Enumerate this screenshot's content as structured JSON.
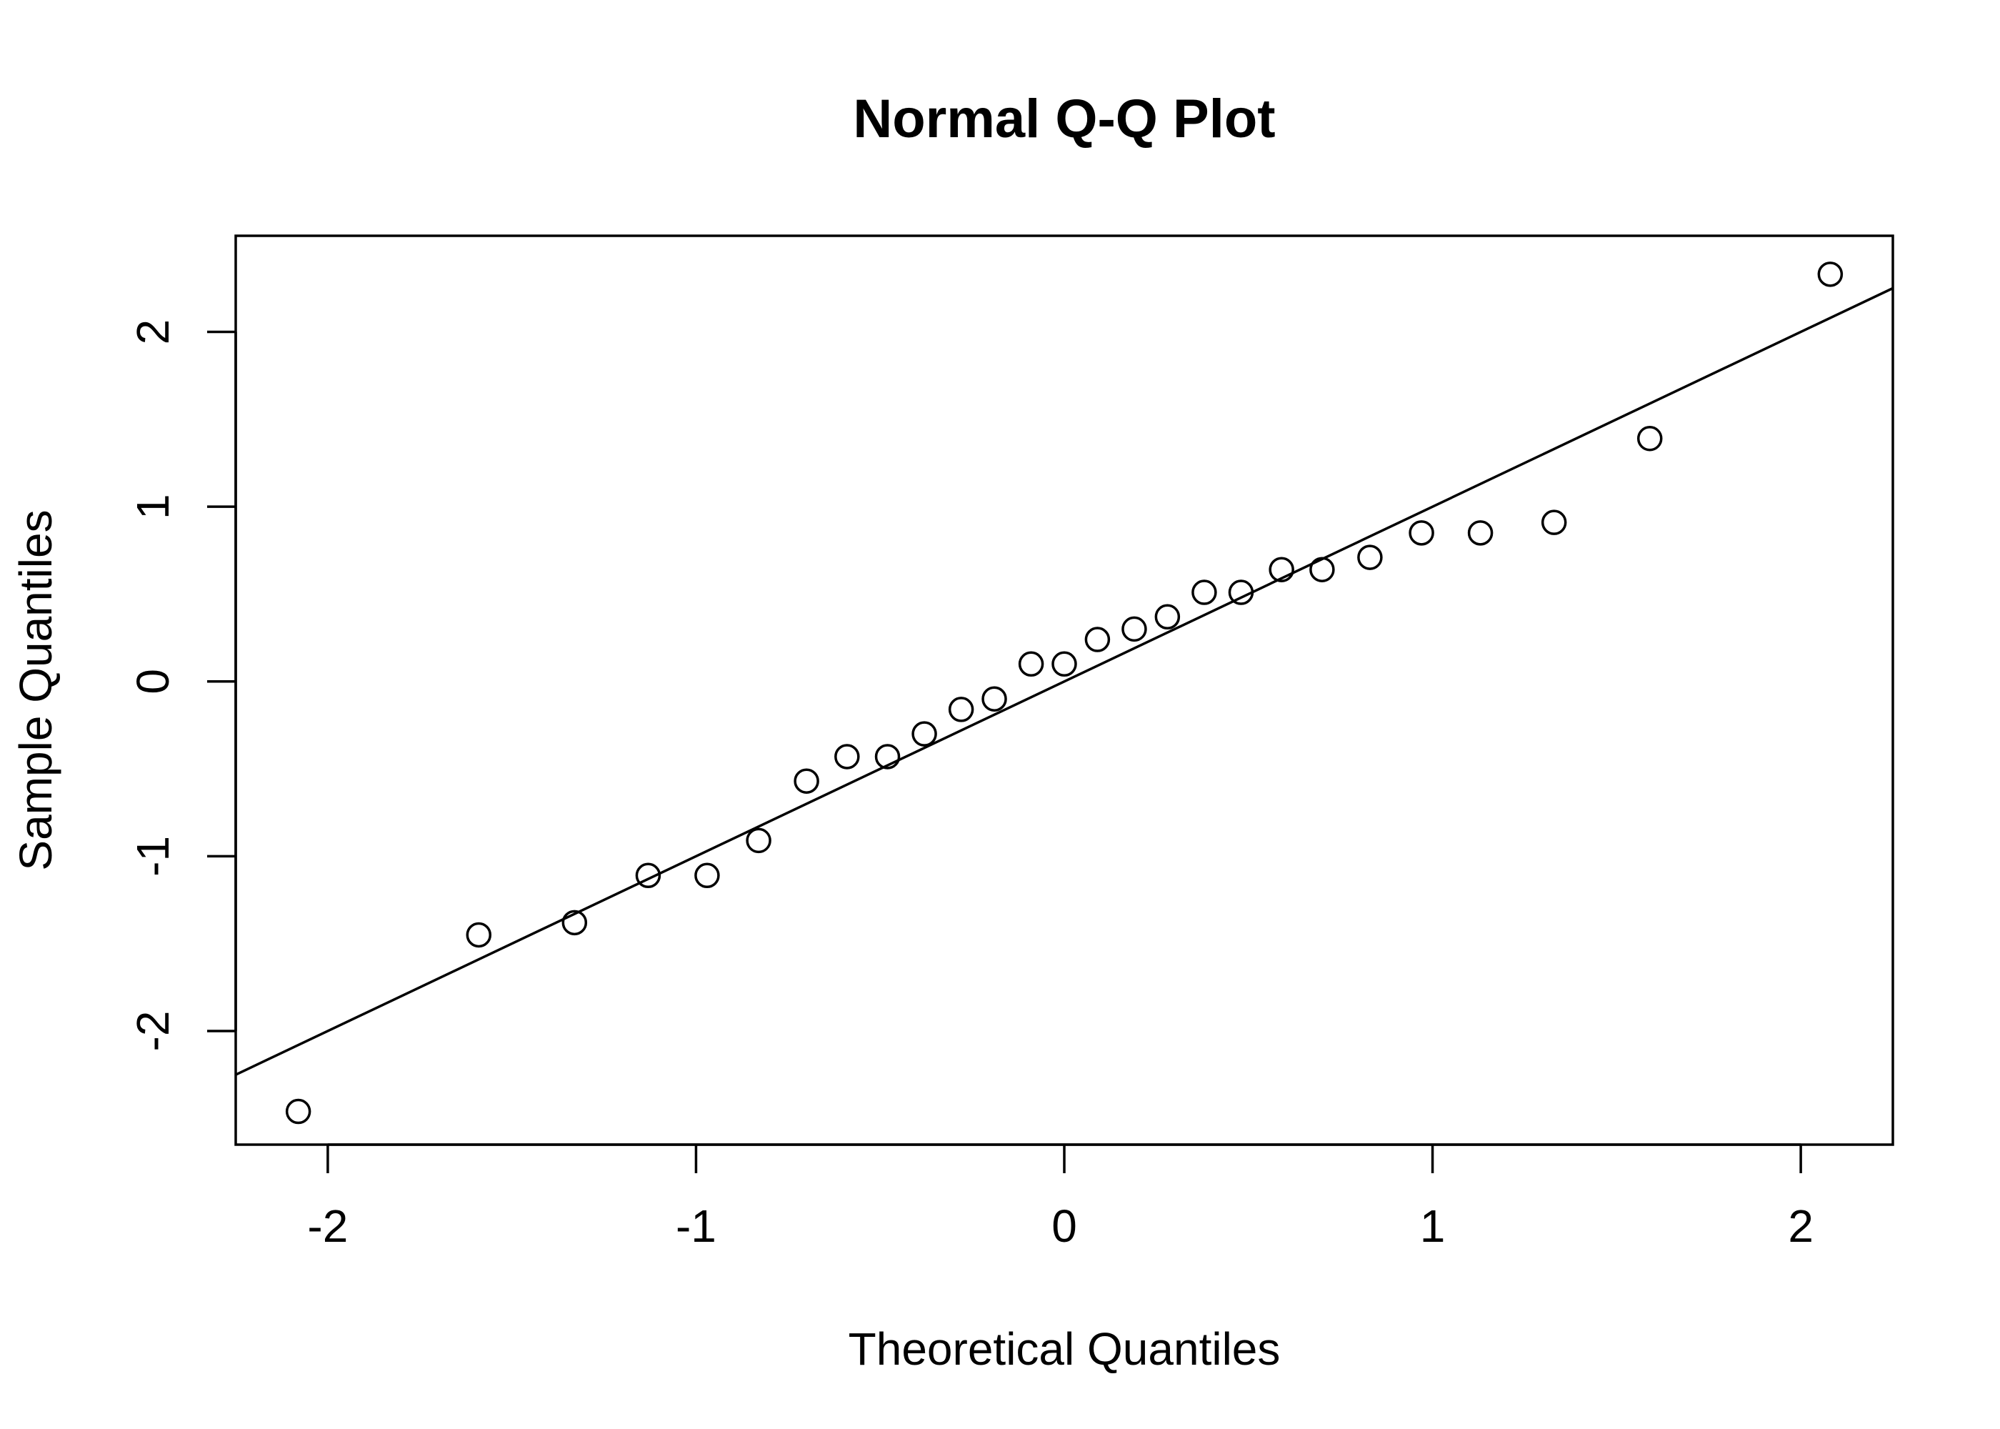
{
  "chart_data": {
    "type": "scatter",
    "title": "Normal Q-Q Plot",
    "xlabel": "Theoretical Quantiles",
    "ylabel": "Sample Quantiles",
    "xlim": [
      -2.25,
      2.25
    ],
    "ylim": [
      -2.65,
      2.55
    ],
    "xticks": [
      -2,
      -1,
      0,
      1,
      2
    ],
    "xtick_labels": [
      "-2",
      "-1",
      "0",
      "1",
      "2"
    ],
    "yticks": [
      -2,
      -1,
      0,
      1,
      2
    ],
    "ytick_labels": [
      "-2",
      "-1",
      "0",
      "1",
      "2"
    ],
    "grid": false,
    "reference_line": {
      "intercept": 0.0,
      "slope": 1.0
    },
    "points": {
      "x": [
        -2.08,
        -1.59,
        -1.33,
        -1.13,
        -0.97,
        -0.83,
        -0.7,
        -0.59,
        -0.48,
        -0.38,
        -0.28,
        -0.19,
        -0.09,
        0.0,
        0.09,
        0.19,
        0.28,
        0.38,
        0.48,
        0.59,
        0.7,
        0.83,
        0.97,
        1.13,
        1.33,
        1.59,
        2.08
      ],
      "y": [
        -2.46,
        -1.45,
        -1.38,
        -1.11,
        -1.11,
        -0.91,
        -0.57,
        -0.43,
        -0.43,
        -0.3,
        -0.16,
        -0.1,
        0.1,
        0.1,
        0.24,
        0.3,
        0.37,
        0.51,
        0.51,
        0.64,
        0.64,
        0.71,
        0.85,
        0.85,
        0.91,
        1.39,
        2.33
      ]
    }
  }
}
